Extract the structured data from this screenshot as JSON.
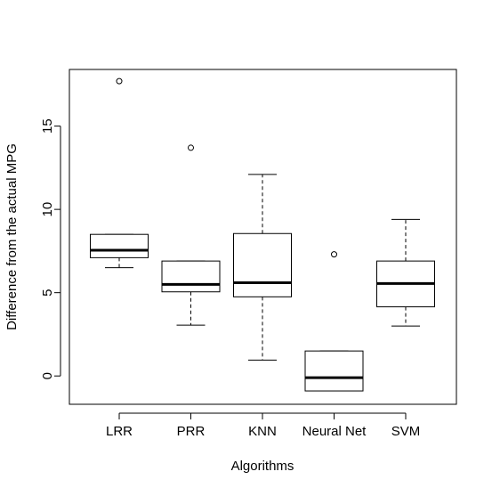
{
  "chart_data": {
    "type": "boxplot",
    "title": "",
    "xlabel": "Algorithms",
    "ylabel": "Difference from the actual MPG",
    "categories": [
      "LRR",
      "PRR",
      "KNN",
      "Neural Net",
      "SVM"
    ],
    "ylim": [
      -1.7,
      18.4
    ],
    "yticks": [
      0,
      5,
      10,
      15
    ],
    "grid": false,
    "legend": "none",
    "boxes": [
      {
        "category": "LRR",
        "whisker_low": 6.5,
        "q1": 7.1,
        "median": 7.55,
        "q3": 8.5,
        "whisker_high": 8.5,
        "outliers": [
          17.7
        ]
      },
      {
        "category": "PRR",
        "whisker_low": 3.05,
        "q1": 5.05,
        "median": 5.5,
        "q3": 6.9,
        "whisker_high": 6.9,
        "outliers": [
          13.7
        ]
      },
      {
        "category": "KNN",
        "whisker_low": 0.95,
        "q1": 4.75,
        "median": 5.6,
        "q3": 8.55,
        "whisker_high": 12.1,
        "outliers": []
      },
      {
        "category": "Neural Net",
        "whisker_low": -0.9,
        "q1": -0.9,
        "median": -0.1,
        "q3": 1.5,
        "whisker_high": 1.5,
        "outliers": [
          7.3
        ]
      },
      {
        "category": "SVM",
        "whisker_low": 3.0,
        "q1": 4.15,
        "median": 5.55,
        "q3": 6.9,
        "whisker_high": 9.4,
        "outliers": []
      }
    ],
    "colors": {
      "box_fill": "#ffffff",
      "stroke": "#000000",
      "background": "#ffffff"
    }
  }
}
